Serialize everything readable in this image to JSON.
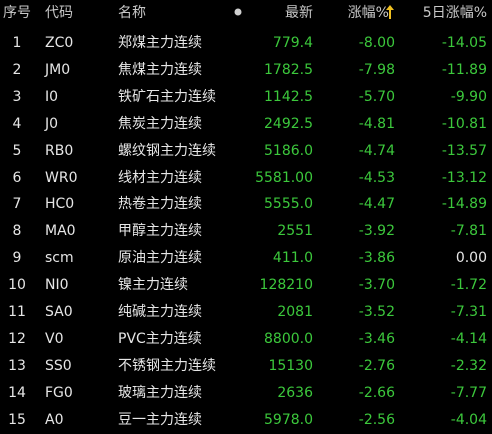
{
  "table": {
    "headers": [
      "序号",
      "代码",
      "名称",
      "最新",
      "涨幅%",
      "5日涨幅%"
    ],
    "rows": [
      [
        "1",
        "ZC0",
        "郑煤主力连续",
        "779.4",
        "-8.00",
        "-14.05"
      ],
      [
        "2",
        "JM0",
        "焦煤主力连续",
        "1782.5",
        "-7.98",
        "-11.89"
      ],
      [
        "3",
        "I0",
        "铁矿石主力连续",
        "1142.5",
        "-5.70",
        "-9.90"
      ],
      [
        "4",
        "J0",
        "焦炭主力连续",
        "2492.5",
        "-4.81",
        "-10.81"
      ],
      [
        "5",
        "RB0",
        "螺纹钢主力连续",
        "5186.0",
        "-4.74",
        "-13.57"
      ],
      [
        "6",
        "WR0",
        "线材主力连续",
        "5581.00",
        "-4.53",
        "-13.12"
      ],
      [
        "7",
        "HC0",
        "热卷主力连续",
        "5555.0",
        "-4.47",
        "-14.89"
      ],
      [
        "8",
        "MA0",
        "甲醇主力连续",
        "2551",
        "-3.92",
        "-7.81"
      ],
      [
        "9",
        "scm",
        "原油主力连续",
        "411.0",
        "-3.86",
        "0.00"
      ],
      [
        "10",
        "NI0",
        "镍主力连续",
        "128210",
        "-3.70",
        "-1.72"
      ],
      [
        "11",
        "SA0",
        "纯碱主力连续",
        "2081",
        "-3.52",
        "-7.31"
      ],
      [
        "12",
        "V0",
        "PVC主力连续",
        "8800.0",
        "-3.46",
        "-4.14"
      ],
      [
        "13",
        "SS0",
        "不锈钢主力连续",
        "15130",
        "-2.76",
        "-2.32"
      ],
      [
        "14",
        "FG0",
        "玻璃主力连续",
        "2636",
        "-2.66",
        "-7.77"
      ],
      [
        "15",
        "A0",
        "豆一主力连续",
        "5978.0",
        "-2.56",
        "-4.04"
      ]
    ]
  }
}
